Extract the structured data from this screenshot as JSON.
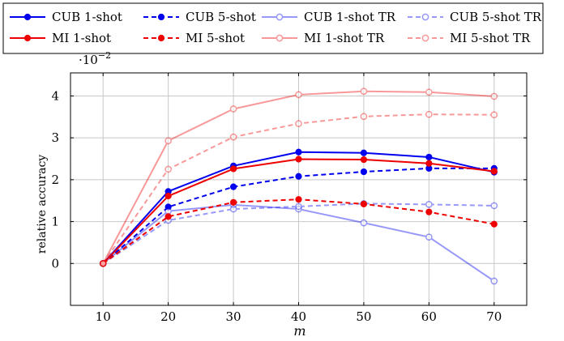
{
  "chart_data": {
    "type": "line",
    "xlabel": "m",
    "ylabel": "relative accuracy",
    "y_multiplier_label": {
      "base": "·10",
      "exponent": "−2"
    },
    "xlim": [
      5,
      75
    ],
    "ylim": [
      -0.01,
      0.0455
    ],
    "xticks": [
      10,
      20,
      30,
      40,
      50,
      60,
      70
    ],
    "yticks": [
      0,
      0.01,
      0.02,
      0.03,
      0.04
    ],
    "ytick_labels": [
      "0",
      "1",
      "2",
      "3",
      "4"
    ],
    "grid": true,
    "legend_position": "top",
    "x": [
      10,
      20,
      30,
      40,
      50,
      60,
      70
    ],
    "series": [
      {
        "name": "CUB 1-shot",
        "color": "#0000ee",
        "dash": "solid",
        "opacity": 1,
        "values": [
          0,
          0.0172,
          0.0233,
          0.0266,
          0.0264,
          0.0254,
          0.0218
        ]
      },
      {
        "name": "CUB 5-shot",
        "color": "#0000ee",
        "dash": "dashed",
        "opacity": 1,
        "values": [
          0,
          0.0135,
          0.0183,
          0.0208,
          0.0219,
          0.0227,
          0.0227
        ]
      },
      {
        "name": "CUB 1-shot TR",
        "color": "#0000ee",
        "dash": "solid",
        "opacity": 0.4,
        "values": [
          0,
          0.0125,
          0.014,
          0.013,
          0.0097,
          0.0063,
          -0.0042
        ]
      },
      {
        "name": "CUB 5-shot TR",
        "color": "#0000ee",
        "dash": "dashed",
        "opacity": 0.4,
        "values": [
          0,
          0.0103,
          0.013,
          0.0136,
          0.0143,
          0.0141,
          0.0138
        ]
      },
      {
        "name": "MI 1-shot",
        "color": "#ee0000",
        "dash": "solid",
        "opacity": 1,
        "values": [
          0,
          0.0161,
          0.0226,
          0.0249,
          0.0248,
          0.0239,
          0.022
        ]
      },
      {
        "name": "MI 5-shot",
        "color": "#ee0000",
        "dash": "dashed",
        "opacity": 1,
        "values": [
          0,
          0.0112,
          0.0146,
          0.0153,
          0.0142,
          0.0123,
          0.0094
        ]
      },
      {
        "name": "MI 1-shot TR",
        "color": "#ee0000",
        "dash": "solid",
        "opacity": 0.4,
        "values": [
          0,
          0.0293,
          0.0369,
          0.0403,
          0.0411,
          0.0409,
          0.0399
        ]
      },
      {
        "name": "MI 5-shot TR",
        "color": "#ee0000",
        "dash": "dashed",
        "opacity": 0.4,
        "values": [
          0,
          0.0225,
          0.0302,
          0.0334,
          0.0351,
          0.0356,
          0.0355
        ]
      }
    ]
  }
}
